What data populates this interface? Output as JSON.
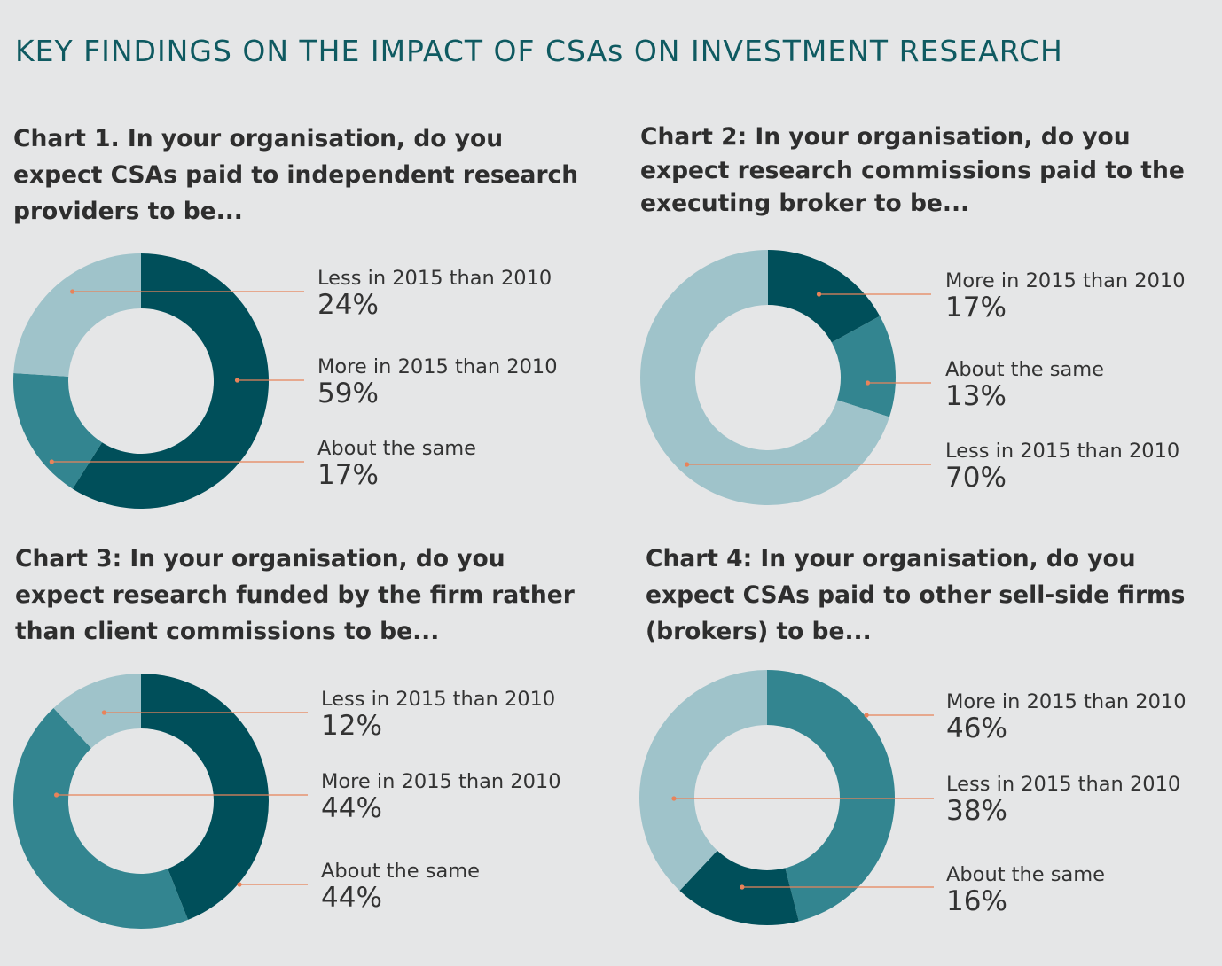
{
  "page": {
    "title": "KEY FINDINGS ON THE IMPACT OF CSAs ON INVESTMENT RESEARCH"
  },
  "colors": {
    "dark_teal": "#004f5a",
    "mid_teal": "#338590",
    "light_teal": "#9fc3ca",
    "leader_line": "#e8835a",
    "background": "#e5e6e7"
  },
  "chart_data": [
    {
      "type": "pie",
      "style": "donut",
      "title": "Chart 1. In your organisation, do you expect CSAs paid to independent research providers to be...",
      "slices": [
        {
          "label": "More in 2015 than 2010",
          "value": 59,
          "display": "59%",
          "color": "#004f5a"
        },
        {
          "label": "About the same",
          "value": 17,
          "display": "17%",
          "color": "#338590"
        },
        {
          "label": "Less in 2015 than 2010",
          "value": 24,
          "display": "24%",
          "color": "#9fc3ca"
        }
      ],
      "legend": [
        {
          "label": "Less in 2015 than 2010",
          "display": "24%"
        },
        {
          "label": "More in 2015 than 2010",
          "display": "59%"
        },
        {
          "label": "About the same",
          "display": "17%"
        }
      ]
    },
    {
      "type": "pie",
      "style": "donut",
      "title": "Chart 2: In your organisation, do you expect research commissions paid to the executing broker to be...",
      "slices": [
        {
          "label": "More in 2015 than 2010",
          "value": 17,
          "display": "17%",
          "color": "#004f5a"
        },
        {
          "label": "About the same",
          "value": 13,
          "display": "13%",
          "color": "#338590"
        },
        {
          "label": "Less in 2015 than 2010",
          "value": 70,
          "display": "70%",
          "color": "#9fc3ca"
        }
      ],
      "legend": [
        {
          "label": "More in 2015 than 2010",
          "display": "17%"
        },
        {
          "label": "About the same",
          "display": "13%"
        },
        {
          "label": "Less in 2015 than 2010",
          "display": "70%"
        }
      ]
    },
    {
      "type": "pie",
      "style": "donut",
      "title": "Chart 3: In your organisation, do you expect research funded by the firm rather than client commissions to be...",
      "slices": [
        {
          "label": "About the same",
          "value": 44,
          "display": "44%",
          "color": "#004f5a"
        },
        {
          "label": "More in 2015 than 2010",
          "value": 44,
          "display": "44%",
          "color": "#338590"
        },
        {
          "label": "Less in 2015 than 2010",
          "value": 12,
          "display": "12%",
          "color": "#9fc3ca"
        }
      ],
      "legend": [
        {
          "label": "Less in 2015 than 2010",
          "display": "12%"
        },
        {
          "label": "More in 2015 than 2010",
          "display": "44%"
        },
        {
          "label": "About the same",
          "display": "44%"
        }
      ]
    },
    {
      "type": "pie",
      "style": "donut",
      "title": "Chart 4: In your organisation, do you expect CSAs paid to other sell-side firms (brokers) to be...",
      "slices": [
        {
          "label": "More in 2015 than 2010",
          "value": 46,
          "display": "46%",
          "color": "#338590"
        },
        {
          "label": "About the same",
          "value": 16,
          "display": "16%",
          "color": "#004f5a"
        },
        {
          "label": "Less in 2015 than 2010",
          "value": 38,
          "display": "38%",
          "color": "#9fc3ca"
        }
      ],
      "legend": [
        {
          "label": "More in 2015 than 2010",
          "display": "46%"
        },
        {
          "label": "Less in 2015 than 2010",
          "display": "38%"
        },
        {
          "label": "About the same",
          "display": "16%"
        }
      ]
    }
  ]
}
